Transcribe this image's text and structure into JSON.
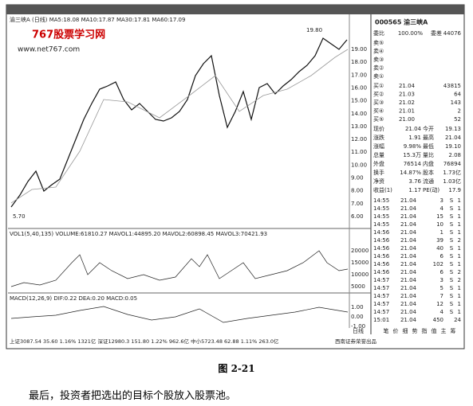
{
  "screenshot": {
    "chart_header": "渝三峡A (日线) MA5:18.08 MA10:17.87 MA30:17.81 MA60:17.09",
    "watermark": {
      "title": "767股票学习网",
      "url": "www.net767.com"
    },
    "price_axis": [
      "19.00",
      "18.00",
      "17.00",
      "16.00",
      "15.00",
      "14.00",
      "13.00",
      "12.00",
      "11.00",
      "10.00",
      "9.00",
      "8.00",
      "7.00",
      "6.00"
    ],
    "high_note": "19.80",
    "low_note": "5.70",
    "volume_header": "VOL1(5,40,135) VOLUME:61810.27 MAVOL1:44895.20 MAVOL2:60898.45 MAVOL3:70421.93",
    "volume_axis": [
      "20000",
      "15000",
      "10000",
      "5000"
    ],
    "macd_header": "MACD(12,26,9) DIF:0.22 DEA:0.20 MACD:0.05",
    "macd_axis": [
      "1.00",
      "0.00",
      "-1.00"
    ],
    "date_tab": "日线",
    "status_bar": "上证3087.54 35.60 1.16% 1321亿 深证12980.3 151.80 1.22% 962.6亿 中小5723.48 62.88 1.11% 263.0亿",
    "status_brand": "西南证券荣誉出品",
    "panel": {
      "code": "000565 渝三峡A",
      "ratio": [
        "委比",
        "100.00%",
        "委差",
        "44076"
      ],
      "asks": [
        [
          "卖⑤",
          "",
          ""
        ],
        [
          "卖④",
          "",
          ""
        ],
        [
          "卖③",
          "",
          ""
        ],
        [
          "卖②",
          "",
          ""
        ],
        [
          "卖①",
          "",
          ""
        ]
      ],
      "bids": [
        [
          "买①",
          "21.04",
          "43815"
        ],
        [
          "买②",
          "21.03",
          "64"
        ],
        [
          "买③",
          "21.02",
          "143"
        ],
        [
          "买④",
          "21.01",
          "2"
        ],
        [
          "买⑤",
          "21.00",
          "52"
        ]
      ],
      "quote": [
        [
          "现价",
          "21.04",
          "今开",
          "19.13"
        ],
        [
          "涨跌",
          "1.91",
          "最高",
          "21.04"
        ],
        [
          "涨幅",
          "9.98%",
          "最低",
          "19.10"
        ],
        [
          "总量",
          "15.3万",
          "量比",
          "2.08"
        ],
        [
          "外盘",
          "76514",
          "内盘",
          "76894"
        ],
        [
          "换手",
          "14.87%",
          "股本",
          "1.73亿"
        ],
        [
          "净资",
          "3.76",
          "流通",
          "1.03亿"
        ],
        [
          "收益(1)",
          "1.17",
          "PE(动)",
          "17.9"
        ]
      ],
      "ticks": [
        [
          "14:55",
          "21.04",
          "3",
          "S",
          "1"
        ],
        [
          "14:55",
          "21.04",
          "4",
          "S",
          "1"
        ],
        [
          "14:55",
          "21.04",
          "15",
          "S",
          "1"
        ],
        [
          "14:55",
          "21.04",
          "10",
          "S",
          "1"
        ],
        [
          "14:56",
          "21.04",
          "1",
          "S",
          "1"
        ],
        [
          "14:56",
          "21.04",
          "39",
          "S",
          "2"
        ],
        [
          "14:56",
          "21.04",
          "40",
          "S",
          "1"
        ],
        [
          "14:56",
          "21.04",
          "6",
          "S",
          "1"
        ],
        [
          "14:56",
          "21.04",
          "102",
          "S",
          "1"
        ],
        [
          "14:56",
          "21.04",
          "6",
          "S",
          "2"
        ],
        [
          "14:57",
          "21.04",
          "3",
          "S",
          "2"
        ],
        [
          "14:57",
          "21.04",
          "5",
          "S",
          "1"
        ],
        [
          "14:57",
          "21.04",
          "7",
          "S",
          "1"
        ],
        [
          "14:57",
          "21.04",
          "12",
          "S",
          "1"
        ],
        [
          "14:57",
          "21.04",
          "4",
          "S",
          "1"
        ],
        [
          "15:01",
          "21.04",
          "450",
          "24"
        ]
      ],
      "tabs": [
        "笔",
        "价",
        "细",
        "势",
        "指",
        "值",
        "主",
        "筹"
      ]
    }
  },
  "caption": "图 2-21",
  "body": "最后，投资者把选出的目标个股放入股票池。"
}
